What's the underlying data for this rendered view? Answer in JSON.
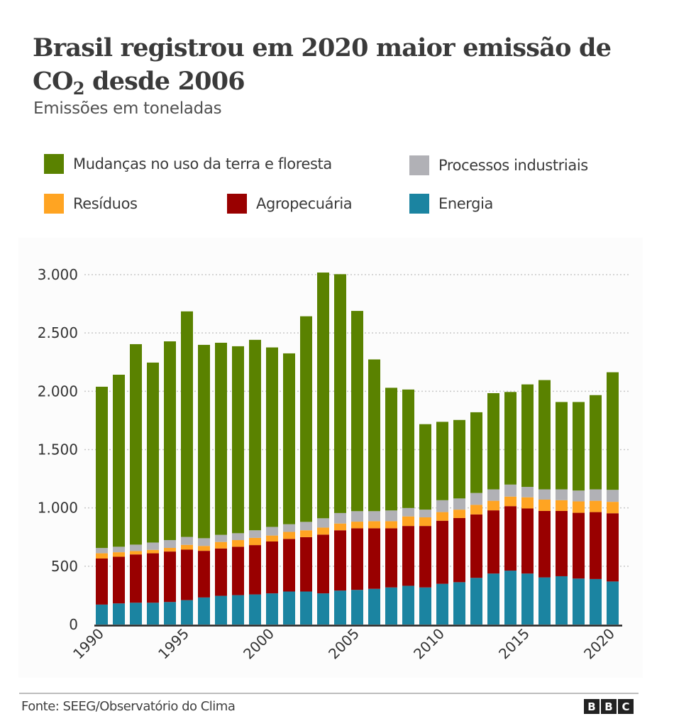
{
  "header": {
    "title_main": "Brasil registrou em 2020 maior emissão de CO",
    "title_sub": "2",
    "title_end": " desde 2006",
    "subtitle": "Emissões em toneladas"
  },
  "legend": [
    {
      "label": "Mudanças no uso da terra e floresta",
      "color": "#5a8200"
    },
    {
      "label": "Processos industriais",
      "color": "#b1b1b6"
    },
    {
      "label": "Resíduos",
      "color": "#ffa422"
    },
    {
      "label": "Agropecuária",
      "color": "#990000"
    },
    {
      "label": "Energia",
      "color": "#1b84a1"
    }
  ],
  "footer": {
    "source": "Fonte: SEEG/Observatório do Clima",
    "logo": [
      "B",
      "B",
      "C"
    ]
  },
  "chart_data": {
    "type": "bar",
    "stacked": true,
    "title": "Brasil registrou em 2020 maior emissão de CO2 desde 2006",
    "subtitle": "Emissões em toneladas",
    "xlabel": "",
    "ylabel": "",
    "ylim": [
      0,
      3000
    ],
    "yticks": [
      0,
      500,
      1000,
      1500,
      2000,
      2500,
      3000
    ],
    "ytick_labels": [
      "0",
      "500",
      "1.000",
      "1.500",
      "2.000",
      "2.500",
      "3.000"
    ],
    "xtick_labels": [
      "1990",
      "1995",
      "2000",
      "2005",
      "2010",
      "2015",
      "2020"
    ],
    "grid": "horizontal-dotted",
    "legend_position": "top",
    "categories": [
      "1990",
      "1991",
      "1992",
      "1993",
      "1994",
      "1995",
      "1996",
      "1997",
      "1998",
      "1999",
      "2000",
      "2001",
      "2002",
      "2003",
      "2004",
      "2005",
      "2006",
      "2007",
      "2008",
      "2009",
      "2010",
      "2011",
      "2012",
      "2013",
      "2014",
      "2015",
      "2016",
      "2017",
      "2018",
      "2019",
      "2020"
    ],
    "series": [
      {
        "name": "Energia",
        "color": "#1b84a1",
        "values": [
          171,
          181,
          187,
          187,
          193,
          209,
          232,
          246,
          252,
          258,
          267,
          283,
          283,
          267,
          291,
          297,
          306,
          318,
          332,
          318,
          349,
          363,
          400,
          437,
          462,
          437,
          404,
          414,
          394,
          390,
          369
        ]
      },
      {
        "name": "Agropecuária",
        "color": "#990000",
        "values": [
          395,
          400,
          414,
          424,
          433,
          433,
          400,
          406,
          415,
          423,
          445,
          451,
          466,
          504,
          517,
          528,
          519,
          507,
          513,
          527,
          541,
          550,
          544,
          542,
          553,
          558,
          570,
          560,
          564,
          574,
          585
        ]
      },
      {
        "name": "Resíduos",
        "color": "#ffa422",
        "values": [
          45,
          39,
          29,
          29,
          31,
          41,
          42,
          56,
          57,
          62,
          51,
          60,
          59,
          60,
          58,
          57,
          61,
          61,
          82,
          74,
          74,
          72,
          82,
          82,
          82,
          96,
          97,
          92,
          98,
          97,
          98
        ]
      },
      {
        "name": "Processos industriais",
        "color": "#b1b1b6",
        "values": [
          45,
          47,
          55,
          63,
          67,
          68,
          66,
          61,
          59,
          65,
          74,
          66,
          72,
          80,
          90,
          90,
          86,
          92,
          72,
          66,
          102,
          96,
          102,
          98,
          103,
          89,
          88,
          93,
          93,
          98,
          103
        ]
      },
      {
        "name": "Mudanças no uso da terra e floresta",
        "color": "#5a8200",
        "values": [
          1383,
          1475,
          1719,
          1543,
          1704,
          1934,
          1658,
          1647,
          1603,
          1633,
          1539,
          1465,
          1763,
          2107,
          2048,
          1717,
          1301,
          1052,
          1016,
          733,
          672,
          673,
          692,
          825,
          794,
          879,
          937,
          749,
          759,
          808,
          1008
        ]
      }
    ]
  }
}
